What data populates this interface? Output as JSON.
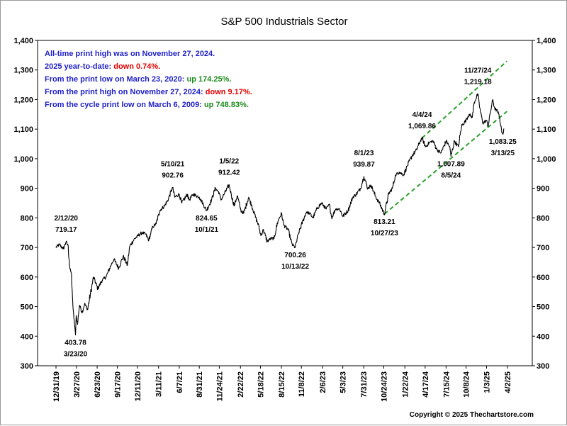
{
  "chart_data": {
    "type": "line",
    "title": "S&P 500 Industrials Sector",
    "xlabel": "",
    "ylabel": "",
    "ylim": [
      300,
      1400
    ],
    "yticks": [
      300,
      400,
      500,
      600,
      700,
      800,
      900,
      1000,
      1100,
      1200,
      1300,
      1400
    ],
    "ytick_labels": [
      "300",
      "400",
      "500",
      "600",
      "700",
      "800",
      "900",
      "1,000",
      "1,100",
      "1,200",
      "1,300",
      "1,400"
    ],
    "xlim": [
      "2019-12-31",
      "2025-04-02"
    ],
    "xticks": [
      {
        "date": "2019-12-31",
        "label": "12/31/19"
      },
      {
        "date": "2020-03-27",
        "label": "3/27/20"
      },
      {
        "date": "2020-06-23",
        "label": "6/23/20"
      },
      {
        "date": "2020-09-17",
        "label": "9/17/20"
      },
      {
        "date": "2020-12-11",
        "label": "12/11/20"
      },
      {
        "date": "2021-03-11",
        "label": "3/11/21"
      },
      {
        "date": "2021-06-07",
        "label": "6/7/21"
      },
      {
        "date": "2021-08-31",
        "label": "8/31/21"
      },
      {
        "date": "2021-11-24",
        "label": "11/24/21"
      },
      {
        "date": "2022-02-22",
        "label": "2/22/22"
      },
      {
        "date": "2022-05-18",
        "label": "5/18/22"
      },
      {
        "date": "2022-08-15",
        "label": "8/15/22"
      },
      {
        "date": "2022-11-08",
        "label": "11/8/22"
      },
      {
        "date": "2023-02-06",
        "label": "2/6/23"
      },
      {
        "date": "2023-05-03",
        "label": "5/3/23"
      },
      {
        "date": "2023-07-31",
        "label": "7/31/23"
      },
      {
        "date": "2023-10-24",
        "label": "10/24/23"
      },
      {
        "date": "2024-01-22",
        "label": "1/22/24"
      },
      {
        "date": "2024-04-17",
        "label": "4/17/24"
      },
      {
        "date": "2024-07-15",
        "label": "7/15/24"
      },
      {
        "date": "2024-10-08",
        "label": "10/8/24"
      },
      {
        "date": "2025-01-03",
        "label": "1/3/25"
      },
      {
        "date": "2025-04-02",
        "label": "4/2/25"
      }
    ],
    "series": [
      {
        "color": "#000000",
        "points": [
          [
            "2019-12-31",
            700
          ],
          [
            "2020-01-15",
            710
          ],
          [
            "2020-01-31",
            695
          ],
          [
            "2020-02-12",
            719
          ],
          [
            "2020-02-21",
            705
          ],
          [
            "2020-02-28",
            630
          ],
          [
            "2020-03-06",
            610
          ],
          [
            "2020-03-12",
            500
          ],
          [
            "2020-03-18",
            450
          ],
          [
            "2020-03-23",
            404
          ],
          [
            "2020-03-26",
            470
          ],
          [
            "2020-04-01",
            440
          ],
          [
            "2020-04-09",
            505
          ],
          [
            "2020-04-21",
            480
          ],
          [
            "2020-05-01",
            510
          ],
          [
            "2020-05-14",
            490
          ],
          [
            "2020-06-08",
            600
          ],
          [
            "2020-06-26",
            560
          ],
          [
            "2020-07-15",
            590
          ],
          [
            "2020-07-31",
            600
          ],
          [
            "2020-08-21",
            640
          ],
          [
            "2020-09-02",
            660
          ],
          [
            "2020-09-23",
            630
          ],
          [
            "2020-10-12",
            670
          ],
          [
            "2020-10-30",
            640
          ],
          [
            "2020-11-09",
            705
          ],
          [
            "2020-11-30",
            730
          ],
          [
            "2020-12-15",
            740
          ],
          [
            "2020-12-31",
            750
          ],
          [
            "2021-01-15",
            745
          ],
          [
            "2021-01-29",
            725
          ],
          [
            "2021-02-15",
            770
          ],
          [
            "2021-03-01",
            780
          ],
          [
            "2021-03-17",
            825
          ],
          [
            "2021-04-05",
            840
          ],
          [
            "2021-04-20",
            860
          ],
          [
            "2021-05-10",
            903
          ],
          [
            "2021-05-19",
            870
          ],
          [
            "2021-06-07",
            880
          ],
          [
            "2021-06-18",
            850
          ],
          [
            "2021-07-12",
            880
          ],
          [
            "2021-07-19",
            860
          ],
          [
            "2021-08-06",
            880
          ],
          [
            "2021-08-31",
            870
          ],
          [
            "2021-09-15",
            850
          ],
          [
            "2021-10-01",
            825
          ],
          [
            "2021-10-22",
            860
          ],
          [
            "2021-11-08",
            900
          ],
          [
            "2021-11-24",
            885
          ],
          [
            "2021-12-01",
            860
          ],
          [
            "2021-12-15",
            880
          ],
          [
            "2022-01-05",
            912
          ],
          [
            "2022-01-14",
            880
          ],
          [
            "2022-01-27",
            840
          ],
          [
            "2022-02-09",
            875
          ],
          [
            "2022-02-24",
            825
          ],
          [
            "2022-03-08",
            815
          ],
          [
            "2022-03-29",
            870
          ],
          [
            "2022-04-12",
            840
          ],
          [
            "2022-04-29",
            800
          ],
          [
            "2022-05-12",
            770
          ],
          [
            "2022-05-20",
            740
          ],
          [
            "2022-05-31",
            760
          ],
          [
            "2022-06-16",
            720
          ],
          [
            "2022-06-30",
            730
          ],
          [
            "2022-07-15",
            730
          ],
          [
            "2022-08-01",
            790
          ],
          [
            "2022-08-16",
            815
          ],
          [
            "2022-08-26",
            775
          ],
          [
            "2022-09-13",
            760
          ],
          [
            "2022-09-30",
            710
          ],
          [
            "2022-10-13",
            700
          ],
          [
            "2022-10-28",
            750
          ],
          [
            "2022-11-15",
            790
          ],
          [
            "2022-11-30",
            820
          ],
          [
            "2022-12-13",
            815
          ],
          [
            "2022-12-28",
            800
          ],
          [
            "2023-01-13",
            830
          ],
          [
            "2023-02-02",
            850
          ],
          [
            "2023-02-22",
            830
          ],
          [
            "2023-03-08",
            845
          ],
          [
            "2023-03-17",
            800
          ],
          [
            "2023-04-03",
            830
          ],
          [
            "2023-04-20",
            830
          ],
          [
            "2023-05-04",
            805
          ],
          [
            "2023-05-26",
            825
          ],
          [
            "2023-06-15",
            870
          ],
          [
            "2023-06-30",
            880
          ],
          [
            "2023-07-18",
            900
          ],
          [
            "2023-08-01",
            940
          ],
          [
            "2023-08-18",
            900
          ],
          [
            "2023-09-01",
            910
          ],
          [
            "2023-09-21",
            870
          ],
          [
            "2023-10-06",
            850
          ],
          [
            "2023-10-27",
            813
          ],
          [
            "2023-11-14",
            880
          ],
          [
            "2023-11-30",
            900
          ],
          [
            "2023-12-14",
            945
          ],
          [
            "2023-12-29",
            955
          ],
          [
            "2024-01-17",
            945
          ],
          [
            "2024-02-01",
            975
          ],
          [
            "2024-02-22",
            1010
          ],
          [
            "2024-03-12",
            1030
          ],
          [
            "2024-03-28",
            1060
          ],
          [
            "2024-04-04",
            1070
          ],
          [
            "2024-04-19",
            1040
          ],
          [
            "2024-05-06",
            1055
          ],
          [
            "2024-05-21",
            1060
          ],
          [
            "2024-06-07",
            1030
          ],
          [
            "2024-06-24",
            1020
          ],
          [
            "2024-07-16",
            1060
          ],
          [
            "2024-07-31",
            1040
          ],
          [
            "2024-08-05",
            1008
          ],
          [
            "2024-08-20",
            1060
          ],
          [
            "2024-09-06",
            1040
          ],
          [
            "2024-09-19",
            1110
          ],
          [
            "2024-10-08",
            1130
          ],
          [
            "2024-10-21",
            1150
          ],
          [
            "2024-11-04",
            1140
          ],
          [
            "2024-11-12",
            1190
          ],
          [
            "2024-11-27",
            1219
          ],
          [
            "2024-12-06",
            1170
          ],
          [
            "2024-12-19",
            1120
          ],
          [
            "2025-01-03",
            1130
          ],
          [
            "2025-01-10",
            1110
          ],
          [
            "2025-01-23",
            1170
          ],
          [
            "2025-01-30",
            1200
          ],
          [
            "2025-02-07",
            1170
          ],
          [
            "2025-02-19",
            1160
          ],
          [
            "2025-02-28",
            1140
          ],
          [
            "2025-03-05",
            1110
          ],
          [
            "2025-03-13",
            1083
          ],
          [
            "2025-03-19",
            1100
          ]
        ]
      }
    ],
    "trend_channel": {
      "color": "#2ca02c",
      "style": "dashed",
      "upper": [
        [
          "2024-04-04",
          1070
        ],
        [
          "2025-03-31",
          1330
        ]
      ],
      "lower": [
        [
          "2023-10-27",
          813
        ],
        [
          "2025-03-31",
          1160
        ]
      ]
    },
    "annotations": [
      {
        "date": "2020-02-12",
        "value": 719.17,
        "label_value": "719.17",
        "label_date": "2/12/20",
        "order": "date-first"
      },
      {
        "date": "2020-03-23",
        "value": 403.78,
        "label_value": "403.78",
        "label_date": "3/23/20",
        "order": "value-first"
      },
      {
        "date": "2021-05-10",
        "value": 902.76,
        "label_value": "902.76",
        "label_date": "5/10/21",
        "order": "date-first"
      },
      {
        "date": "2021-10-01",
        "value": 824.65,
        "label_value": "824.65",
        "label_date": "10/1/21",
        "order": "value-first"
      },
      {
        "date": "2022-01-05",
        "value": 912.42,
        "label_value": "912.42",
        "label_date": "1/5/22",
        "order": "date-first"
      },
      {
        "date": "2022-10-13",
        "value": 700.26,
        "label_value": "700.26",
        "label_date": "10/13/22",
        "order": "value-first"
      },
      {
        "date": "2023-08-01",
        "value": 939.87,
        "label_value": "939.87",
        "label_date": "8/1/23",
        "order": "date-first"
      },
      {
        "date": "2023-10-27",
        "value": 813.21,
        "label_value": "813.21",
        "label_date": "10/27/23",
        "order": "value-first"
      },
      {
        "date": "2024-04-04",
        "value": 1069.86,
        "label_value": "1,069.86",
        "label_date": "4/4/24",
        "order": "date-first"
      },
      {
        "date": "2024-08-05",
        "value": 1007.89,
        "label_value": "1,007.89",
        "label_date": "8/5/24",
        "order": "value-first"
      },
      {
        "date": "2024-11-27",
        "value": 1219.18,
        "label_value": "1,219.18",
        "label_date": "11/27/24",
        "order": "date-first"
      },
      {
        "date": "2025-03-13",
        "value": 1083.25,
        "label_value": "1,083.25",
        "label_date": "3/13/25",
        "order": "value-first"
      }
    ],
    "notes": [
      {
        "parts": [
          {
            "text": "All-time print high was on November 27, 2024.",
            "color": "#1f1fc8"
          }
        ]
      },
      {
        "parts": [
          {
            "text": "2025 year-to-date:  ",
            "color": "#1f1fc8"
          },
          {
            "text": "down 0.74%.",
            "color": "#e00000"
          }
        ]
      },
      {
        "parts": [
          {
            "text": "From the print low on March 23, 2020:  ",
            "color": "#1f1fc8"
          },
          {
            "text": "up 174.25%.",
            "color": "#1a8a1a"
          }
        ]
      },
      {
        "parts": [
          {
            "text": "From the print high on November 27, 2024:  ",
            "color": "#1f1fc8"
          },
          {
            "text": "down 9.17%.",
            "color": "#e00000"
          }
        ]
      },
      {
        "parts": [
          {
            "text": "From the cycle print low on March 6, 2009:  ",
            "color": "#1f1fc8"
          },
          {
            "text": "up 748.83%.",
            "color": "#1a8a1a"
          }
        ]
      }
    ],
    "copyright": "Copyright © 2025 Thechartstore.com",
    "grid": false,
    "legend": "none"
  }
}
